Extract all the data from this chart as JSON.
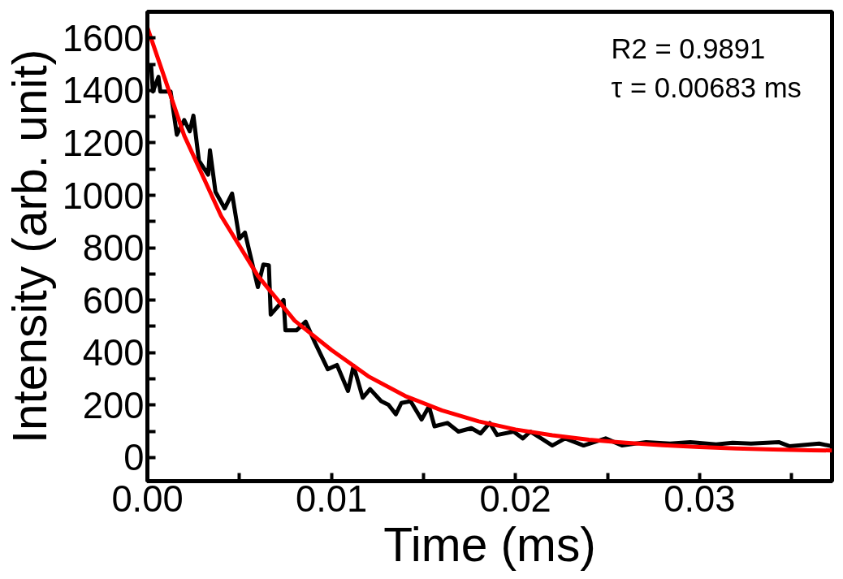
{
  "chart_data": {
    "type": "line",
    "xlabel": "Time (ms)",
    "ylabel": "Intensity (arb. unit)",
    "annotations": [
      "R2 = 0.9891",
      "τ = 0.00683 ms"
    ],
    "xlim": [
      0,
      0.0372
    ],
    "ylim": [
      -90,
      1700
    ],
    "xticks": [
      {
        "value": 0,
        "label": "0.00"
      },
      {
        "value": 0.005,
        "label": null
      },
      {
        "value": 0.01,
        "label": "0.01"
      },
      {
        "value": 0.015,
        "label": null
      },
      {
        "value": 0.02,
        "label": "0.02"
      },
      {
        "value": 0.025,
        "label": null
      },
      {
        "value": 0.03,
        "label": "0.03"
      },
      {
        "value": 0.035,
        "label": null
      }
    ],
    "yticks": [
      0,
      {
        "value": 100,
        "label": null
      },
      200,
      {
        "value": 300,
        "label": null
      },
      400,
      {
        "value": 500,
        "label": null
      },
      600,
      {
        "value": 700,
        "label": null
      },
      800,
      {
        "value": 900,
        "label": null
      },
      1000,
      {
        "value": 1100,
        "label": null
      },
      1200,
      {
        "value": 1300,
        "label": null
      },
      1400,
      {
        "value": 1500,
        "label": null
      },
      1600
    ],
    "grid": false,
    "marker": "none",
    "line_style": "solid",
    "series": [
      {
        "color": "#000000",
        "x": [
          0.0002,
          0.0003,
          0.0006,
          0.0007,
          0.00126,
          0.0016,
          0.002,
          0.0023,
          0.0025,
          0.0028,
          0.0033,
          0.0034,
          0.0037,
          0.0042,
          0.0046,
          0.005,
          0.0053,
          0.006,
          0.0063,
          0.0066,
          0.0067,
          0.0074,
          0.0075,
          0.0081,
          0.0086,
          0.0091,
          0.0098,
          0.0103,
          0.0109,
          0.0112,
          0.0117,
          0.0121,
          0.0127,
          0.0131,
          0.0135,
          0.0138,
          0.0143,
          0.0149,
          0.0153,
          0.0156,
          0.0163,
          0.0169,
          0.0176,
          0.0181,
          0.0186,
          0.019,
          0.0199,
          0.0204,
          0.0208,
          0.0214,
          0.022,
          0.0227,
          0.0237,
          0.0249,
          0.0258,
          0.0271,
          0.0284,
          0.0295,
          0.0309,
          0.0318,
          0.0328,
          0.0343,
          0.0349,
          0.0365,
          0.0372
        ],
        "values": [
          1495,
          1396,
          1452,
          1396,
          1396,
          1231,
          1287,
          1244,
          1304,
          1132,
          1079,
          1172,
          1013,
          950,
          1007,
          835,
          858,
          650,
          736,
          733,
          545,
          601,
          485,
          485,
          518,
          439,
          337,
          353,
          254,
          350,
          228,
          261,
          215,
          201,
          165,
          208,
          215,
          145,
          195,
          119,
          132,
          99,
          112,
          92,
          132,
          86,
          99,
          73,
          99,
          73,
          46,
          73,
          46,
          73,
          46,
          59,
          53,
          59,
          50,
          56,
          53,
          59,
          43,
          53,
          43
        ]
      },
      {
        "color": "#ff0000",
        "x": [
          0,
          0.002,
          0.004,
          0.006,
          0.008,
          0.01,
          0.012,
          0.014,
          0.016,
          0.018,
          0.02,
          0.022,
          0.024,
          0.026,
          0.028,
          0.03,
          0.032,
          0.034,
          0.036,
          0.0372
        ],
        "values": [
          1640,
          1228,
          922,
          693,
          522,
          410,
          310,
          235,
          180,
          138,
          107,
          85,
          68,
          56,
          47,
          40,
          35,
          31,
          28,
          27
        ]
      }
    ]
  }
}
